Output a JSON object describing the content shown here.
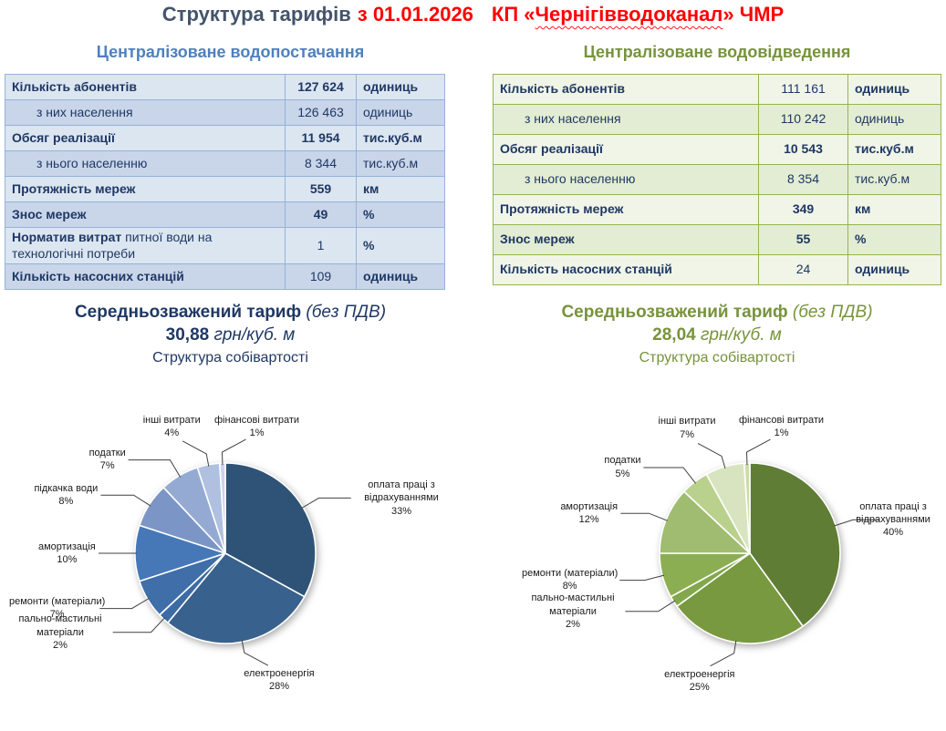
{
  "title": {
    "main": "Структура тарифів",
    "date": "з 01.01.2026",
    "company_prefix": "КП «",
    "company_name": "Чернігівводоканал",
    "company_suffix": "» ЧМР"
  },
  "sections": [
    {
      "heading": "Централізоване водопостачання",
      "colors": {
        "heading": "#4F81BD",
        "border": "#95B3D7",
        "row_light": "#DCE6F1",
        "row_dark": "#C9D5E9",
        "text": "#1F3864",
        "tariff": "#1F3864"
      },
      "table_rows": [
        {
          "label": "Кількість абонентів",
          "value": "127 624",
          "unit": "одиниць",
          "label_bold": true,
          "value_bold": true,
          "unit_bold": true,
          "indent": false
        },
        {
          "label": "з них населення",
          "value": "126 463",
          "unit": "одиниць",
          "label_bold": false,
          "value_bold": false,
          "unit_bold": false,
          "indent": true
        },
        {
          "label": "Обсяг реалізації",
          "value": "11 954",
          "unit": "тис.куб.м",
          "label_bold": true,
          "value_bold": true,
          "unit_bold": true,
          "indent": false
        },
        {
          "label": "з нього населенню",
          "value": "8 344",
          "unit": "тис.куб.м",
          "label_bold": false,
          "value_bold": false,
          "unit_bold": false,
          "indent": true
        },
        {
          "label": "Протяжність мереж",
          "value": "559",
          "unit": "км",
          "label_bold": true,
          "value_bold": true,
          "unit_bold": true,
          "indent": false
        },
        {
          "label": "Знос мереж",
          "value": "49",
          "unit": "%",
          "label_bold": true,
          "value_bold": true,
          "unit_bold": true,
          "indent": false
        },
        {
          "label": "Норматив витрат",
          "label2": " питної води на технологічні потреби",
          "value": "1",
          "unit": "%",
          "label_bold": true,
          "value_bold": false,
          "unit_bold": true,
          "indent": false
        },
        {
          "label": "Кількість насосних станцій",
          "value": "109",
          "unit": "одиниць",
          "label_bold": true,
          "value_bold": false,
          "unit_bold": true,
          "indent": false
        }
      ],
      "tariff": {
        "line1_bold": "Середньозважений тариф",
        "line1_italic": "(без ПДВ)",
        "value": "30,88",
        "unit": "грн/куб. м",
        "subtitle": "Структура собівартості"
      }
    },
    {
      "heading": "Централізоване водовідведення",
      "colors": {
        "heading": "#77933C",
        "border": "#94B64E",
        "row_light": "#F0F5E8",
        "row_dark": "#E3EDD3",
        "text": "#1F3864",
        "tariff": "#77933C"
      },
      "table_rows": [
        {
          "label": "Кількість абонентів",
          "value": "111 161",
          "unit": "одиниць",
          "label_bold": true,
          "value_bold": false,
          "unit_bold": true,
          "indent": false
        },
        {
          "label": "з них населення",
          "value": "110 242",
          "unit": "одиниць",
          "label_bold": false,
          "value_bold": false,
          "unit_bold": false,
          "indent": true
        },
        {
          "label": "Обсяг реалізації",
          "value": "10 543",
          "unit": "тис.куб.м",
          "label_bold": true,
          "value_bold": true,
          "unit_bold": true,
          "indent": false
        },
        {
          "label": "з нього населенню",
          "value": "8 354",
          "unit": "тис.куб.м",
          "label_bold": false,
          "value_bold": false,
          "unit_bold": false,
          "indent": true
        },
        {
          "label": "Протяжність мереж",
          "value": "349",
          "unit": "км",
          "label_bold": true,
          "value_bold": true,
          "unit_bold": true,
          "indent": false
        },
        {
          "label": "Знос мереж",
          "value": "55",
          "unit": "%",
          "label_bold": true,
          "value_bold": true,
          "unit_bold": true,
          "indent": false
        },
        {
          "label": "Кількість насосних станцій",
          "value": "24",
          "unit": "одиниць",
          "label_bold": true,
          "value_bold": false,
          "unit_bold": true,
          "indent": false
        }
      ],
      "tariff": {
        "line1_bold": "Середньозважений тариф",
        "line1_italic": "(без ПДВ)",
        "value": "28,04",
        "unit": "грн/куб. м",
        "subtitle": "Структура собівартості"
      }
    }
  ],
  "chart_data": [
    {
      "type": "pie",
      "title": "Структура собівартості (централізоване водопостачання)",
      "unit": "%",
      "start_angle_deg": 0,
      "direction": "clockwise",
      "labels_outside": true,
      "labels": [
        "оплата праці з відрахуваннями",
        "електроенергія",
        "пально-мастильні матеріали",
        "ремонти (матеріали)",
        "амортизація",
        "підкачка води",
        "податки",
        "інші витрати",
        "фінансові витрати"
      ],
      "values": [
        33,
        28,
        2,
        7,
        10,
        8,
        7,
        4,
        1
      ],
      "colors": [
        "#2F5377",
        "#38618D",
        "#3D6BA4",
        "#3F6EA9",
        "#4678B8",
        "#7C95C7",
        "#95AAD3",
        "#AFC0E0",
        "#CBD5EB"
      ]
    },
    {
      "type": "pie",
      "title": "Структура собівартості (централізоване водовідведення)",
      "unit": "%",
      "start_angle_deg": 0,
      "direction": "clockwise",
      "labels_outside": true,
      "labels": [
        "оплата праці з відрахуваннями",
        "електроенергія",
        "пально-мастильні матеріали",
        "ремонти (матеріали)",
        "амортизація",
        "податки",
        "інші витрати",
        "фінансові витрати"
      ],
      "values": [
        40,
        25,
        2,
        8,
        12,
        5,
        7,
        1
      ],
      "colors": [
        "#5F7D34",
        "#78993F",
        "#83A74C",
        "#8CAE52",
        "#9FBC70",
        "#B9D18D",
        "#D8E4BF",
        "#CCDCA6"
      ]
    }
  ]
}
